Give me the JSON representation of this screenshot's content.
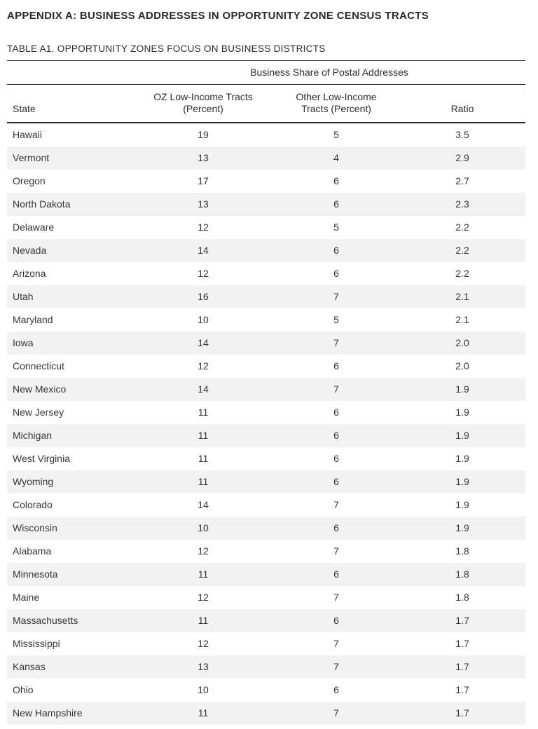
{
  "page": {
    "appendix_title": "APPENDIX A: BUSINESS ADDRESSES IN OPPORTUNITY ZONE CENSUS TRACTS",
    "table_title": "TABLE A1. OPPORTUNITY ZONES FOCUS ON BUSINESS DISTRICTS"
  },
  "table": {
    "spanner": "Business Share of Postal Addresses",
    "columns": [
      "State",
      "OZ Low-Income Tracts\n(Percent)",
      "Other Low-Income\nTracts (Percent)",
      "Ratio"
    ],
    "rows": [
      {
        "state": "Hawaii",
        "oz": "19",
        "other": "5",
        "ratio": "3.5"
      },
      {
        "state": "Vermont",
        "oz": "13",
        "other": "4",
        "ratio": "2.9"
      },
      {
        "state": "Oregon",
        "oz": "17",
        "other": "6",
        "ratio": "2.7"
      },
      {
        "state": "North Dakota",
        "oz": "13",
        "other": "6",
        "ratio": "2.3"
      },
      {
        "state": "Delaware",
        "oz": "12",
        "other": "5",
        "ratio": "2.2"
      },
      {
        "state": "Nevada",
        "oz": "14",
        "other": "6",
        "ratio": "2.2"
      },
      {
        "state": "Arizona",
        "oz": "12",
        "other": "6",
        "ratio": "2.2"
      },
      {
        "state": "Utah",
        "oz": "16",
        "other": "7",
        "ratio": "2.1"
      },
      {
        "state": "Maryland",
        "oz": "10",
        "other": "5",
        "ratio": "2.1"
      },
      {
        "state": "Iowa",
        "oz": "14",
        "other": "7",
        "ratio": "2.0"
      },
      {
        "state": "Connecticut",
        "oz": "12",
        "other": "6",
        "ratio": "2.0"
      },
      {
        "state": "New Mexico",
        "oz": "14",
        "other": "7",
        "ratio": "1.9"
      },
      {
        "state": "New Jersey",
        "oz": "11",
        "other": "6",
        "ratio": "1.9"
      },
      {
        "state": "Michigan",
        "oz": "11",
        "other": "6",
        "ratio": "1.9"
      },
      {
        "state": "West Virginia",
        "oz": "11",
        "other": "6",
        "ratio": "1.9"
      },
      {
        "state": "Wyoming",
        "oz": "11",
        "other": "6",
        "ratio": "1.9"
      },
      {
        "state": "Colorado",
        "oz": "14",
        "other": "7",
        "ratio": "1.9"
      },
      {
        "state": "Wisconsin",
        "oz": "10",
        "other": "6",
        "ratio": "1.9"
      },
      {
        "state": "Alabama",
        "oz": "12",
        "other": "7",
        "ratio": "1.8"
      },
      {
        "state": "Minnesota",
        "oz": "11",
        "other": "6",
        "ratio": "1.8"
      },
      {
        "state": "Maine",
        "oz": "12",
        "other": "7",
        "ratio": "1.8"
      },
      {
        "state": "Massachusetts",
        "oz": "11",
        "other": "6",
        "ratio": "1.7"
      },
      {
        "state": "Mississippi",
        "oz": "12",
        "other": "7",
        "ratio": "1.7"
      },
      {
        "state": "Kansas",
        "oz": "13",
        "other": "7",
        "ratio": "1.7"
      },
      {
        "state": "Ohio",
        "oz": "10",
        "other": "6",
        "ratio": "1.7"
      },
      {
        "state": "New Hampshire",
        "oz": "11",
        "other": "7",
        "ratio": "1.7"
      }
    ]
  },
  "colors": {
    "text": "#363636",
    "heading_text": "#2b2b2b",
    "row_stripe": "#f2f2f3",
    "rule": "#2b2b2b"
  }
}
